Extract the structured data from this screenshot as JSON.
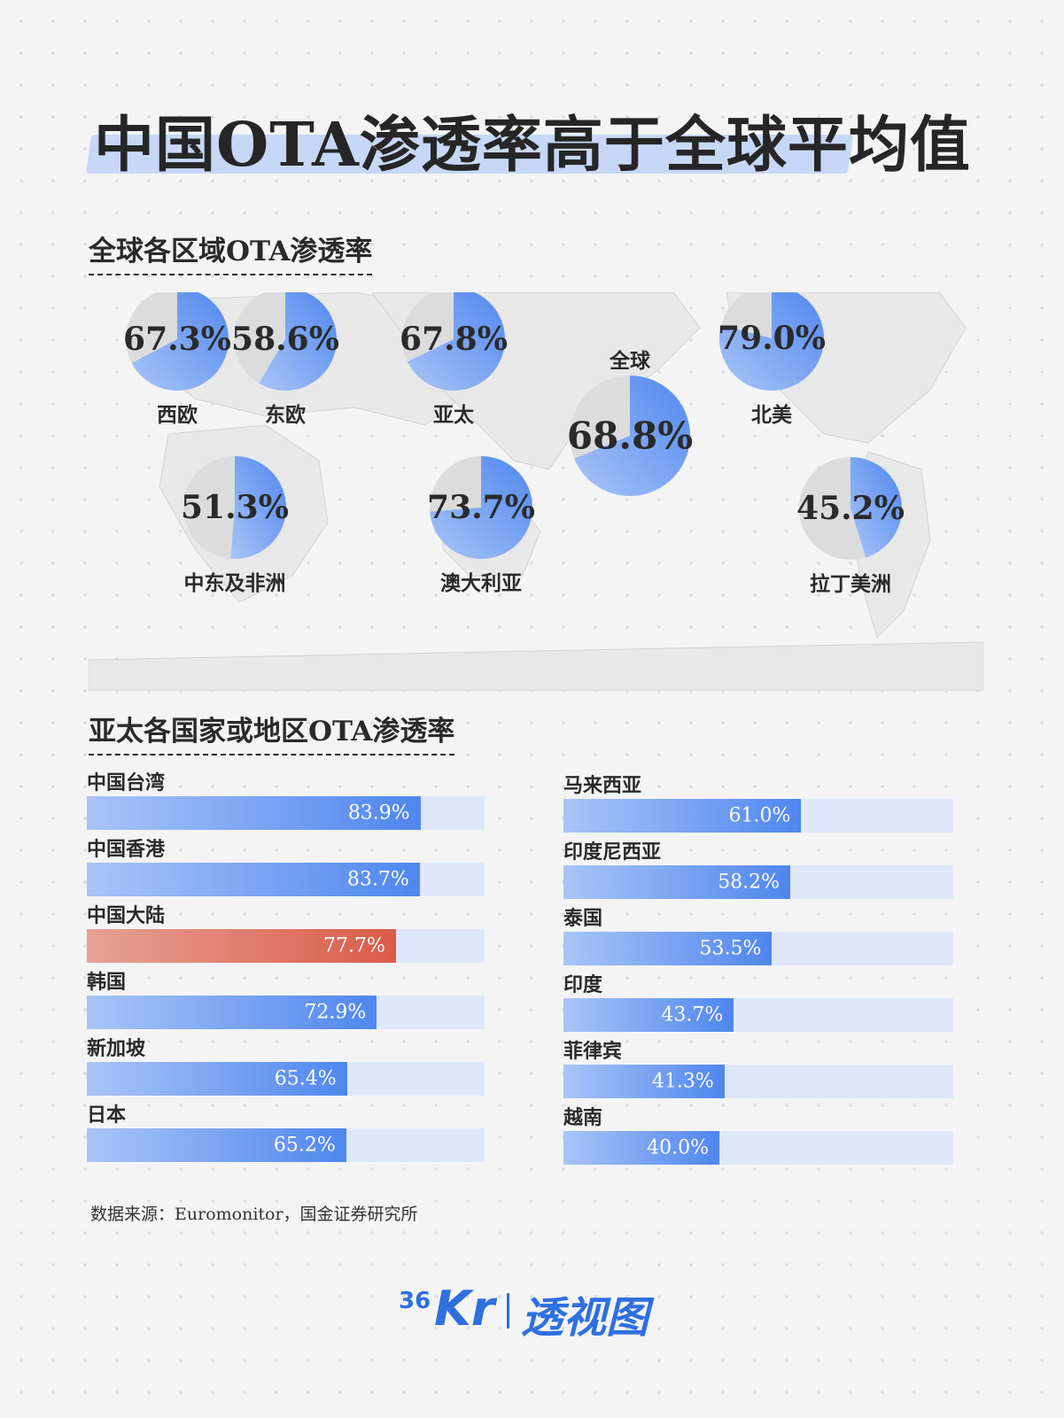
{
  "title": "中国OTA渗透率高于全球平均值",
  "section_regions_title": "全球各区域OTA渗透率",
  "section_apac_title": "亚太各国家或地区OTA渗透率",
  "source": "数据来源：Euromonitor，国金证券研究所",
  "brand": {
    "num": "36",
    "kr": "Kr",
    "name": "透视图"
  },
  "colors": {
    "accent": "#4f86ee",
    "highlight": "#db5b48",
    "pie_rest": "#dcdcdc",
    "track": "#dfe8fa"
  },
  "chart_data": [
    {
      "type": "pie",
      "title": "全球各区域OTA渗透率",
      "regions": [
        {
          "name": "西欧",
          "label": "67.3%",
          "value": 67.3
        },
        {
          "name": "东欧",
          "label": "58.6%",
          "value": 58.6
        },
        {
          "name": "亚太",
          "label": "67.8%",
          "value": 67.8
        },
        {
          "name": "全球",
          "label": "68.8%",
          "value": 68.8
        },
        {
          "name": "北美",
          "label": "79.0%",
          "value": 79.0
        },
        {
          "name": "中东及非洲",
          "label": "51.3%",
          "value": 51.3
        },
        {
          "name": "澳大利亚",
          "label": "73.7%",
          "value": 73.7
        },
        {
          "name": "拉丁美洲",
          "label": "45.2%",
          "value": 45.2
        }
      ]
    },
    {
      "type": "bar",
      "title": "亚太各国家或地区OTA渗透率",
      "xlim": [
        0,
        100
      ],
      "left_column": [
        {
          "name": "中国台湾",
          "label": "83.9%",
          "value": 83.9
        },
        {
          "name": "中国香港",
          "label": "83.7%",
          "value": 83.7
        },
        {
          "name": "中国大陆",
          "label": "77.7%",
          "value": 77.7,
          "highlight": true
        },
        {
          "name": "韩国",
          "label": "72.9%",
          "value": 72.9
        },
        {
          "name": "新加坡",
          "label": "65.4%",
          "value": 65.4
        },
        {
          "name": "日本",
          "label": "65.2%",
          "value": 65.2
        }
      ],
      "right_column": [
        {
          "name": "马来西亚",
          "label": "61.0%",
          "value": 61.0
        },
        {
          "name": "印度尼西亚",
          "label": "58.2%",
          "value": 58.2
        },
        {
          "name": "泰国",
          "label": "53.5%",
          "value": 53.5
        },
        {
          "name": "印度",
          "label": "43.7%",
          "value": 43.7
        },
        {
          "name": "菲律宾",
          "label": "41.3%",
          "value": 41.3
        },
        {
          "name": "越南",
          "label": "40.0%",
          "value": 40.0
        }
      ]
    }
  ]
}
